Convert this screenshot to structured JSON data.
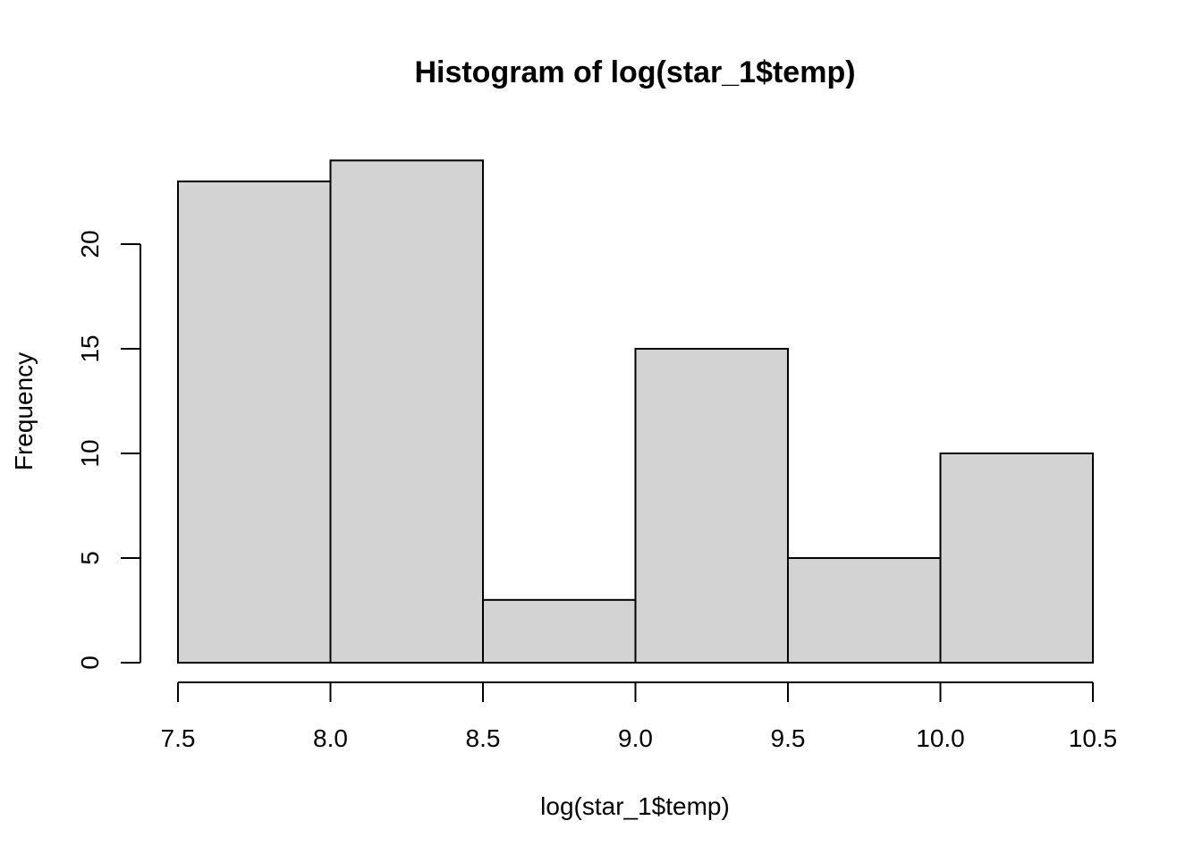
{
  "chart_data": {
    "type": "bar",
    "title": "Histogram of log(star_1$temp)",
    "xlabel": "log(star_1$temp)",
    "ylabel": "Frequency",
    "bins": [
      {
        "x0": 7.5,
        "x1": 8.0,
        "count": 23
      },
      {
        "x0": 8.0,
        "x1": 8.5,
        "count": 24
      },
      {
        "x0": 8.5,
        "x1": 9.0,
        "count": 3
      },
      {
        "x0": 9.0,
        "x1": 9.5,
        "count": 15
      },
      {
        "x0": 9.5,
        "x1": 10.0,
        "count": 5
      },
      {
        "x0": 10.0,
        "x1": 10.5,
        "count": 10
      }
    ],
    "x_ticks": [
      "7.5",
      "8.0",
      "8.5",
      "9.0",
      "9.5",
      "10.0",
      "10.5"
    ],
    "x_tick_values": [
      7.5,
      8.0,
      8.5,
      9.0,
      9.5,
      10.0,
      10.5
    ],
    "y_ticks": [
      "0",
      "5",
      "10",
      "15",
      "20"
    ],
    "y_tick_values": [
      0,
      5,
      10,
      15,
      20
    ],
    "xlim": [
      7.5,
      10.5
    ],
    "ylim": [
      0,
      24
    ],
    "grid": false,
    "bar_fill": "#d3d3d3",
    "bar_stroke": "#000000"
  }
}
